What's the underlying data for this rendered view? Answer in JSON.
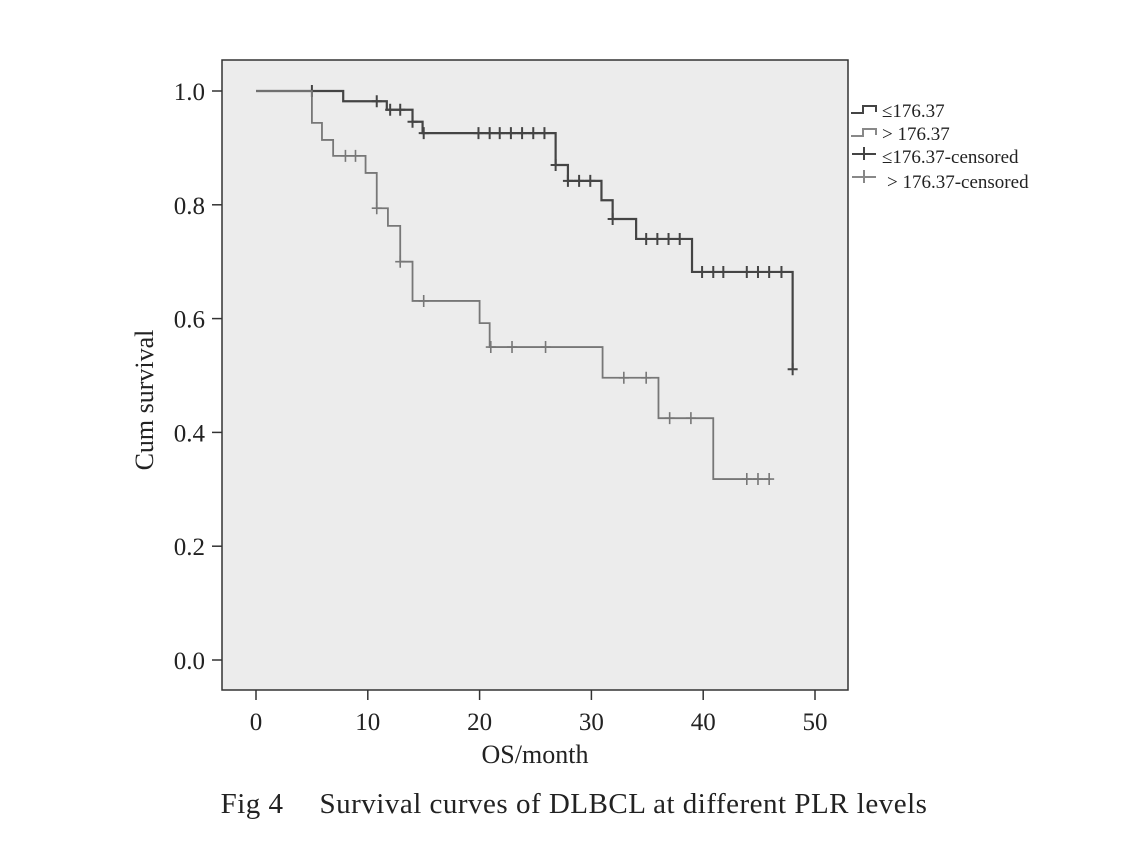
{
  "chart_data": {
    "type": "line",
    "subtype": "kaplan-meier",
    "xlabel": "OS/month",
    "ylabel": "Cum survival",
    "xlim": [
      -3,
      53
    ],
    "ylim": [
      -0.05,
      1.05
    ],
    "xticks": [
      0,
      10,
      20,
      30,
      40,
      50
    ],
    "yticks": [
      0.0,
      0.2,
      0.4,
      0.6,
      0.8,
      1.0
    ],
    "ytick_labels": [
      "0.0",
      "0.2",
      "0.4",
      "0.6",
      "0.8",
      "1.0"
    ],
    "grid": false,
    "legend_position": "right",
    "legend": [
      "≤176.37",
      "> 176.37",
      "≤176.37-censored",
      "> 176.37-censored"
    ],
    "series": [
      {
        "name": "≤176.37",
        "color": "#444444",
        "end_x": 48,
        "steps": [
          [
            0,
            1.0
          ],
          [
            7.8,
            0.982
          ],
          [
            11.7,
            0.967
          ],
          [
            14.0,
            0.946
          ],
          [
            14.9,
            0.926
          ],
          [
            26.8,
            0.87
          ],
          [
            27.9,
            0.842
          ],
          [
            30.9,
            0.808
          ],
          [
            31.9,
            0.775
          ],
          [
            34.0,
            0.74
          ],
          [
            39.0,
            0.682
          ],
          [
            48.0,
            0.511
          ]
        ],
        "censored": [
          [
            5,
            1.0
          ],
          [
            10.8,
            0.982
          ],
          [
            12.0,
            0.967
          ],
          [
            12.9,
            0.967
          ],
          [
            14.0,
            0.946
          ],
          [
            15.0,
            0.926
          ],
          [
            19.9,
            0.926
          ],
          [
            20.9,
            0.926
          ],
          [
            21.8,
            0.926
          ],
          [
            22.8,
            0.926
          ],
          [
            23.8,
            0.926
          ],
          [
            24.8,
            0.926
          ],
          [
            25.8,
            0.926
          ],
          [
            26.8,
            0.87
          ],
          [
            27.9,
            0.842
          ],
          [
            28.9,
            0.842
          ],
          [
            29.9,
            0.842
          ],
          [
            31.9,
            0.775
          ],
          [
            34.9,
            0.74
          ],
          [
            35.9,
            0.74
          ],
          [
            36.9,
            0.74
          ],
          [
            37.9,
            0.74
          ],
          [
            39.9,
            0.682
          ],
          [
            40.9,
            0.682
          ],
          [
            41.8,
            0.682
          ],
          [
            43.9,
            0.682
          ],
          [
            44.9,
            0.682
          ],
          [
            45.9,
            0.682
          ],
          [
            47.0,
            0.682
          ],
          [
            48.0,
            0.511
          ]
        ]
      },
      {
        "name": "> 176.37",
        "color": "#777777",
        "end_x": 46,
        "steps": [
          [
            0,
            1.0
          ],
          [
            5.0,
            0.944
          ],
          [
            5.9,
            0.914
          ],
          [
            6.9,
            0.886
          ],
          [
            9.8,
            0.856
          ],
          [
            10.8,
            0.794
          ],
          [
            11.8,
            0.763
          ],
          [
            12.9,
            0.7
          ],
          [
            14.0,
            0.631
          ],
          [
            20.0,
            0.592
          ],
          [
            20.9,
            0.55
          ],
          [
            31.0,
            0.496
          ],
          [
            36.0,
            0.425
          ],
          [
            40.9,
            0.318
          ]
        ],
        "censored": [
          [
            8.0,
            0.886
          ],
          [
            8.9,
            0.886
          ],
          [
            10.8,
            0.794
          ],
          [
            12.9,
            0.7
          ],
          [
            15.0,
            0.631
          ],
          [
            21.0,
            0.55
          ],
          [
            22.9,
            0.55
          ],
          [
            25.9,
            0.55
          ],
          [
            32.9,
            0.496
          ],
          [
            34.9,
            0.496
          ],
          [
            37.0,
            0.425
          ],
          [
            38.9,
            0.425
          ],
          [
            43.9,
            0.318
          ],
          [
            44.9,
            0.318
          ],
          [
            45.9,
            0.318
          ]
        ]
      }
    ]
  },
  "caption": {
    "label": "Fig 4",
    "text": "Survival curves of DLBCL at different PLR levels"
  }
}
